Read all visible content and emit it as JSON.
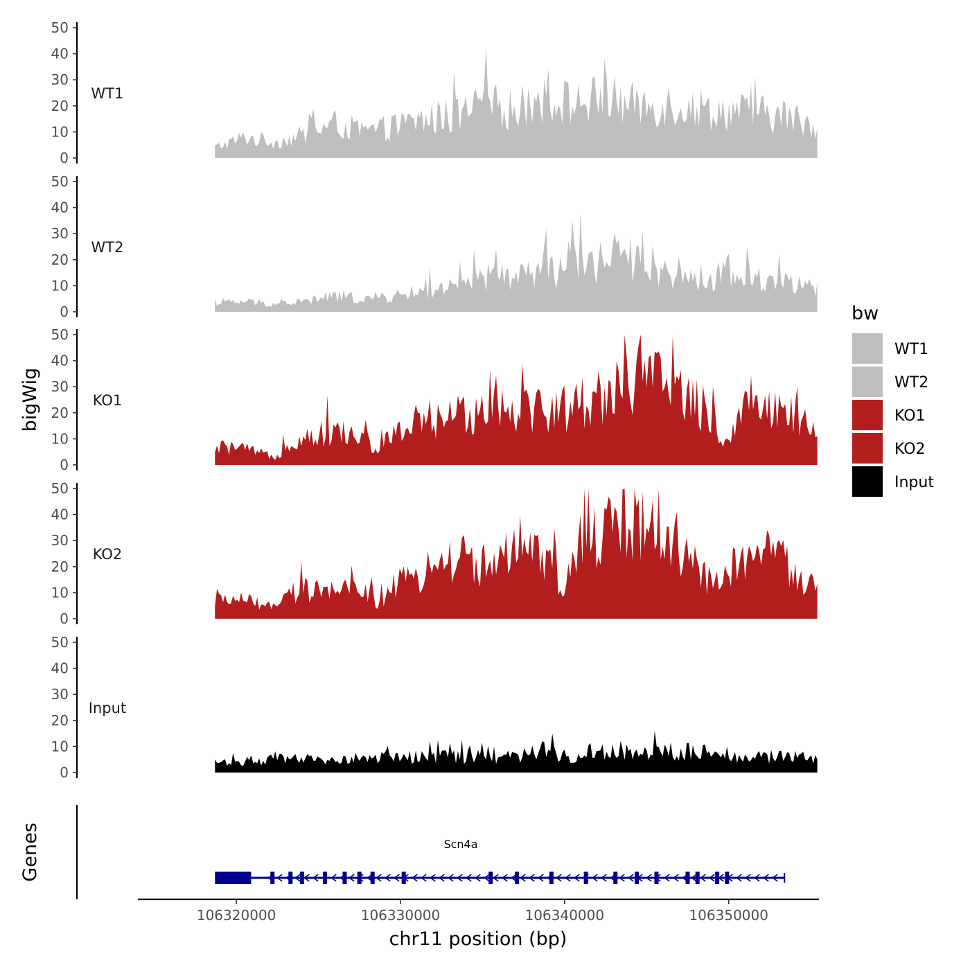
{
  "chart_data": {
    "type": "area",
    "y_axis_title": "bigWig",
    "genes_axis_title": "Genes",
    "x_axis_title": "chr11 position (bp)",
    "xlim": [
      106314000,
      106355500
    ],
    "data_range": [
      106318700,
      106355400
    ],
    "x_ticks": [
      {
        "value": 106320000,
        "label": "106320000"
      },
      {
        "value": 106330000,
        "label": "106330000"
      },
      {
        "value": 106340000,
        "label": "106340000"
      },
      {
        "value": 106350000,
        "label": "106350000"
      }
    ],
    "ylim": [
      0,
      50
    ],
    "y_ticks": [
      {
        "value": 0,
        "label": "0"
      },
      {
        "value": 10,
        "label": "10"
      },
      {
        "value": 20,
        "label": "20"
      },
      {
        "value": 30,
        "label": "30"
      },
      {
        "value": 40,
        "label": "40"
      },
      {
        "value": 50,
        "label": "50"
      }
    ],
    "series": [
      {
        "name": "WT1",
        "color": "#bebebe",
        "profile": [
          [
            0,
            4
          ],
          [
            0.05,
            8
          ],
          [
            0.1,
            6
          ],
          [
            0.15,
            9
          ],
          [
            0.2,
            13
          ],
          [
            0.25,
            10
          ],
          [
            0.3,
            12
          ],
          [
            0.35,
            15
          ],
          [
            0.4,
            16
          ],
          [
            0.45,
            20
          ],
          [
            0.5,
            19
          ],
          [
            0.55,
            22
          ],
          [
            0.6,
            21
          ],
          [
            0.65,
            23
          ],
          [
            0.7,
            20
          ],
          [
            0.75,
            21
          ],
          [
            0.8,
            19
          ],
          [
            0.85,
            18
          ],
          [
            0.9,
            17
          ],
          [
            0.95,
            16
          ],
          [
            1,
            12
          ]
        ],
        "peaks": [
          {
            "x": 0.645,
            "y": 38
          },
          {
            "x": 0.52,
            "y": 27
          }
        ]
      },
      {
        "name": "WT2",
        "color": "#bebebe",
        "profile": [
          [
            0,
            3
          ],
          [
            0.05,
            4
          ],
          [
            0.1,
            3
          ],
          [
            0.15,
            4
          ],
          [
            0.2,
            6
          ],
          [
            0.25,
            5
          ],
          [
            0.3,
            6
          ],
          [
            0.35,
            8
          ],
          [
            0.4,
            9
          ],
          [
            0.45,
            13
          ],
          [
            0.5,
            14
          ],
          [
            0.55,
            15
          ],
          [
            0.6,
            18
          ],
          [
            0.65,
            19
          ],
          [
            0.7,
            20
          ],
          [
            0.75,
            16
          ],
          [
            0.8,
            13
          ],
          [
            0.85,
            14
          ],
          [
            0.9,
            13
          ],
          [
            0.95,
            12
          ],
          [
            1,
            8
          ]
        ],
        "peaks": [
          {
            "x": 0.71,
            "y": 31
          },
          {
            "x": 0.64,
            "y": 27
          }
        ]
      },
      {
        "name": "KO1",
        "color": "#b21e1e",
        "profile": [
          [
            0,
            7
          ],
          [
            0.05,
            6
          ],
          [
            0.1,
            3
          ],
          [
            0.12,
            8
          ],
          [
            0.15,
            11
          ],
          [
            0.2,
            13
          ],
          [
            0.25,
            10
          ],
          [
            0.27,
            5
          ],
          [
            0.3,
            13
          ],
          [
            0.35,
            15
          ],
          [
            0.4,
            19
          ],
          [
            0.45,
            23
          ],
          [
            0.5,
            23
          ],
          [
            0.55,
            21
          ],
          [
            0.6,
            23
          ],
          [
            0.65,
            28
          ],
          [
            0.7,
            33
          ],
          [
            0.75,
            31
          ],
          [
            0.8,
            24
          ],
          [
            0.83,
            16
          ],
          [
            0.85,
            7
          ],
          [
            0.87,
            24
          ],
          [
            0.9,
            25
          ],
          [
            0.95,
            20
          ],
          [
            1,
            12
          ]
        ],
        "peaks": [
          {
            "x": 0.706,
            "y": 50
          },
          {
            "x": 0.665,
            "y": 40
          }
        ]
      },
      {
        "name": "KO2",
        "color": "#b21e1e",
        "profile": [
          [
            0,
            8
          ],
          [
            0.05,
            7
          ],
          [
            0.1,
            4
          ],
          [
            0.12,
            9
          ],
          [
            0.15,
            11
          ],
          [
            0.2,
            10
          ],
          [
            0.25,
            12
          ],
          [
            0.27,
            5
          ],
          [
            0.3,
            13
          ],
          [
            0.35,
            17
          ],
          [
            0.4,
            24
          ],
          [
            0.45,
            21
          ],
          [
            0.5,
            24
          ],
          [
            0.55,
            22
          ],
          [
            0.58,
            10
          ],
          [
            0.6,
            27
          ],
          [
            0.65,
            34
          ],
          [
            0.7,
            37
          ],
          [
            0.75,
            32
          ],
          [
            0.8,
            21
          ],
          [
            0.83,
            12
          ],
          [
            0.85,
            18
          ],
          [
            0.9,
            25
          ],
          [
            0.95,
            22
          ],
          [
            1,
            10
          ]
        ],
        "peaks": [
          {
            "x": 0.704,
            "y": 46
          },
          {
            "x": 0.662,
            "y": 43
          }
        ]
      },
      {
        "name": "Input",
        "color": "#000000",
        "profile": [
          [
            0,
            4
          ],
          [
            0.1,
            5
          ],
          [
            0.2,
            5
          ],
          [
            0.3,
            6
          ],
          [
            0.4,
            6
          ],
          [
            0.5,
            6
          ],
          [
            0.55,
            9
          ],
          [
            0.6,
            5
          ],
          [
            0.65,
            9
          ],
          [
            0.7,
            8
          ],
          [
            0.75,
            8
          ],
          [
            0.8,
            8
          ],
          [
            0.9,
            6
          ],
          [
            1,
            6
          ]
        ],
        "peaks": [
          {
            "x": 0.56,
            "y": 15
          },
          {
            "x": 0.73,
            "y": 16
          }
        ]
      }
    ],
    "legend": {
      "title": "bw",
      "position": "right",
      "entries": [
        {
          "label": "WT1",
          "color": "#bebebe"
        },
        {
          "label": "WT2",
          "color": "#bebebe"
        },
        {
          "label": "KO1",
          "color": "#b21e1e"
        },
        {
          "label": "KO2",
          "color": "#b21e1e"
        },
        {
          "label": "Input",
          "color": "#000000"
        }
      ]
    },
    "gene": {
      "name": "Scn4a",
      "color": "#00008b",
      "strand": "-",
      "start": 106318700,
      "end": 106353400,
      "utr": [
        106318700,
        106320900
      ],
      "exons": [
        106322200,
        106323300,
        106324000,
        106325400,
        106326600,
        106327500,
        106328300,
        106330200,
        106335500,
        106337100,
        106339200,
        106341300,
        106343100,
        106344400,
        106345600,
        106347500,
        106348100,
        106349300,
        106349900
      ]
    }
  }
}
